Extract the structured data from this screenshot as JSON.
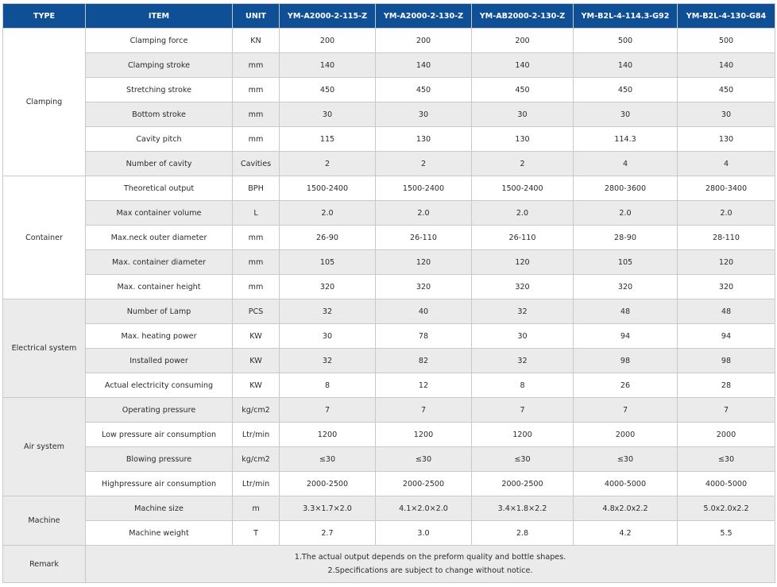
{
  "header": {
    "type": "TYPE",
    "item": "ITEM",
    "unit": "UNIT",
    "models": [
      "YM-A2000-2-115-Z",
      "YM-A2000-2-130-Z",
      "YM-AB2000-2-130-Z",
      "YM-B2L-4-114.3-G92",
      "YM-B2L-4-130-G84"
    ]
  },
  "groups": {
    "clamping": "Clamping",
    "container": "Container",
    "electrical": "Electrical system",
    "air": "Air  system",
    "machine": "Machine"
  },
  "rows": [
    {
      "item": "Clamping force",
      "unit": "KN",
      "values": [
        "200",
        "200",
        "200",
        "500",
        "500"
      ]
    },
    {
      "item": "Clamping stroke",
      "unit": "mm",
      "values": [
        "140",
        "140",
        "140",
        "140",
        "140"
      ]
    },
    {
      "item": "Stretching stroke",
      "unit": "mm",
      "values": [
        "450",
        "450",
        "450",
        "450",
        "450"
      ]
    },
    {
      "item": "Bottom stroke",
      "unit": "mm",
      "values": [
        "30",
        "30",
        "30",
        "30",
        "30"
      ]
    },
    {
      "item": "Cavity pitch",
      "unit": "mm",
      "values": [
        "115",
        "130",
        "130",
        "114.3",
        "130"
      ]
    },
    {
      "item": "Number of cavity",
      "unit": "Cavities",
      "values": [
        "2",
        "2",
        "2",
        "4",
        "4"
      ]
    },
    {
      "item": "Theoretical output",
      "unit": "BPH",
      "values": [
        "1500-2400",
        "1500-2400",
        "1500-2400",
        "2800-3600",
        "2800-3400"
      ]
    },
    {
      "item": "Max container volume",
      "unit": "L",
      "values": [
        "2.0",
        "2.0",
        "2.0",
        "2.0",
        "2.0"
      ]
    },
    {
      "item": "Max.neck outer diameter",
      "unit": "mm",
      "values": [
        "26-90",
        "26-110",
        "26-110",
        "28-90",
        "28-110"
      ]
    },
    {
      "item": "Max. container diameter",
      "unit": "mm",
      "values": [
        "105",
        "120",
        "120",
        "105",
        "120"
      ]
    },
    {
      "item": "Max. container height",
      "unit": "mm",
      "values": [
        "320",
        "320",
        "320",
        "320",
        "320"
      ]
    },
    {
      "item": "Number of Lamp",
      "unit": "PCS",
      "values": [
        "32",
        "40",
        "32",
        "48",
        "48"
      ]
    },
    {
      "item": "Max. heating power",
      "unit": "KW",
      "values": [
        "30",
        "78",
        "30",
        "94",
        "94"
      ]
    },
    {
      "item": "Installed power",
      "unit": "KW",
      "values": [
        "32",
        "82",
        "32",
        "98",
        "98"
      ]
    },
    {
      "item": "Actual electricity consuming",
      "unit": "KW",
      "values": [
        "8",
        "12",
        "8",
        "26",
        "28"
      ]
    },
    {
      "item": "Operating pressure",
      "unit": "kg/cm2",
      "values": [
        "7",
        "7",
        "7",
        "7",
        "7"
      ]
    },
    {
      "item": "Low pressure air consumption",
      "unit": "Ltr/min",
      "values": [
        "1200",
        "1200",
        "1200",
        "2000",
        "2000"
      ]
    },
    {
      "item": "Blowing pressure",
      "unit": "kg/cm2",
      "values": [
        "≤30",
        "≤30",
        "≤30",
        "≤30",
        "≤30"
      ]
    },
    {
      "item": "Highpressure air consumption",
      "unit": "Ltr/min",
      "values": [
        "2000-2500",
        "2000-2500",
        "2000-2500",
        "4000-5000",
        "4000-5000"
      ]
    },
    {
      "item": "Machine size",
      "unit": "m",
      "values": [
        "3.3×1.7×2.0",
        "4.1×2.0×2.0",
        "3.4×1.8×2.2",
        "4.8x2.0x2.2",
        "5.0x2.0x2.2"
      ]
    },
    {
      "item": "Machine weight",
      "unit": "T",
      "values": [
        "2.7",
        "3.0",
        "2.8",
        "4.2",
        "5.5"
      ]
    }
  ],
  "remark": {
    "label": "Remark",
    "line1": "1.The actual output depends on the preform quality and bottle shapes.",
    "line2": "2.Specifications are subject to change without notice."
  }
}
